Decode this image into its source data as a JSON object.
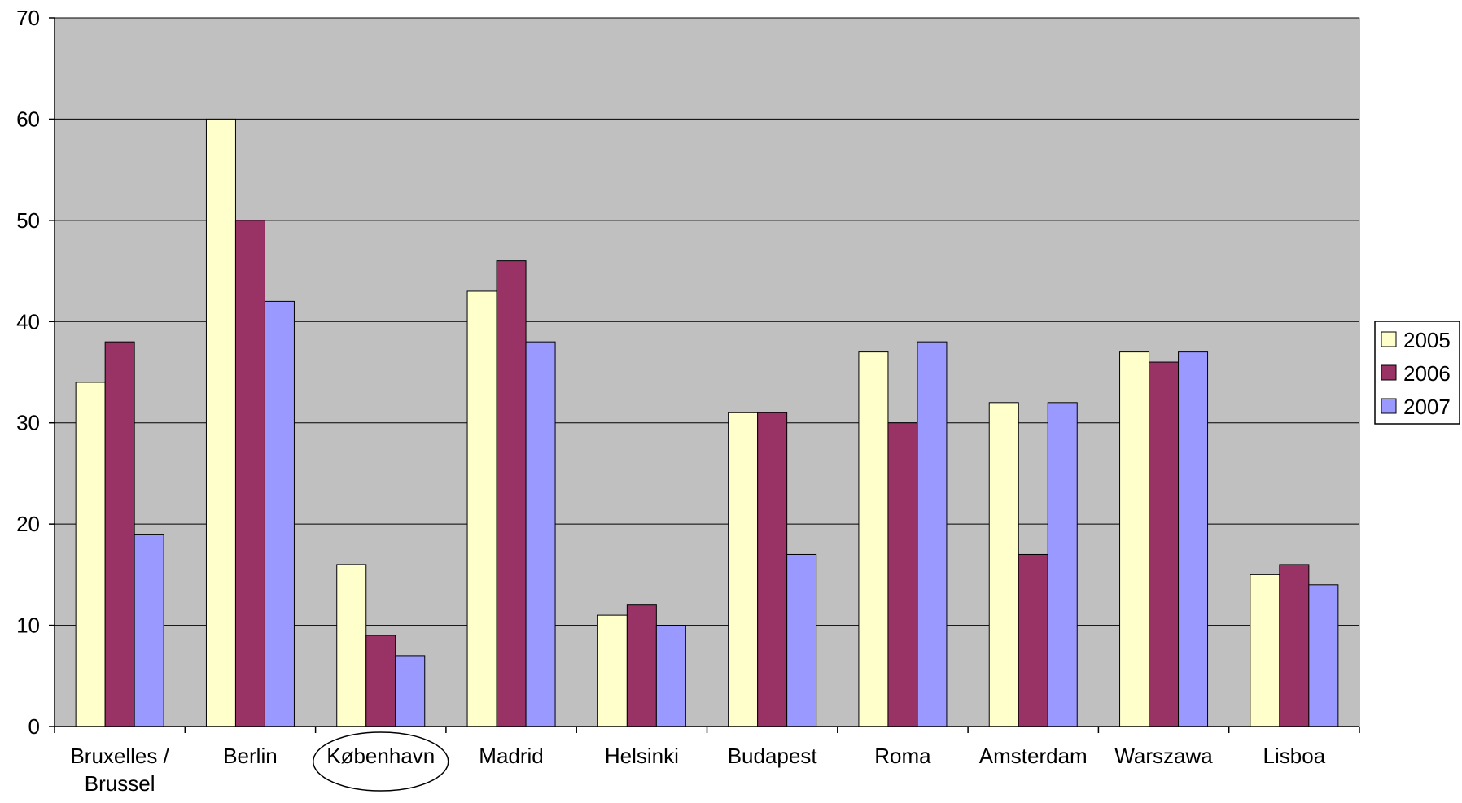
{
  "chart_data": {
    "type": "bar",
    "title": "",
    "xlabel": "",
    "ylabel": "",
    "categories": [
      [
        "Bruxelles /",
        "Brussel"
      ],
      [
        "Berlin"
      ],
      [
        "København"
      ],
      [
        "Madrid"
      ],
      [
        "Helsinki"
      ],
      [
        "Budapest"
      ],
      [
        "Roma"
      ],
      [
        "Amsterdam"
      ],
      [
        "Warszawa"
      ],
      [
        "Lisboa"
      ]
    ],
    "highlighted_category": "København",
    "series": [
      {
        "name": "2005",
        "color": "#ffffcc",
        "values": [
          34,
          60,
          16,
          43,
          11,
          31,
          37,
          32,
          37,
          15
        ]
      },
      {
        "name": "2006",
        "color": "#993366",
        "values": [
          38,
          50,
          9,
          46,
          12,
          31,
          30,
          17,
          36,
          16
        ]
      },
      {
        "name": "2007",
        "color": "#9999ff",
        "values": [
          19,
          42,
          7,
          38,
          10,
          17,
          38,
          32,
          37,
          14
        ]
      }
    ],
    "yticks": [
      "0",
      "10",
      "20",
      "30",
      "40",
      "50",
      "60",
      "70"
    ],
    "ylim": [
      0,
      70
    ],
    "grid": true,
    "plot_background": "#c0c0c0",
    "legend_position": "right"
  }
}
